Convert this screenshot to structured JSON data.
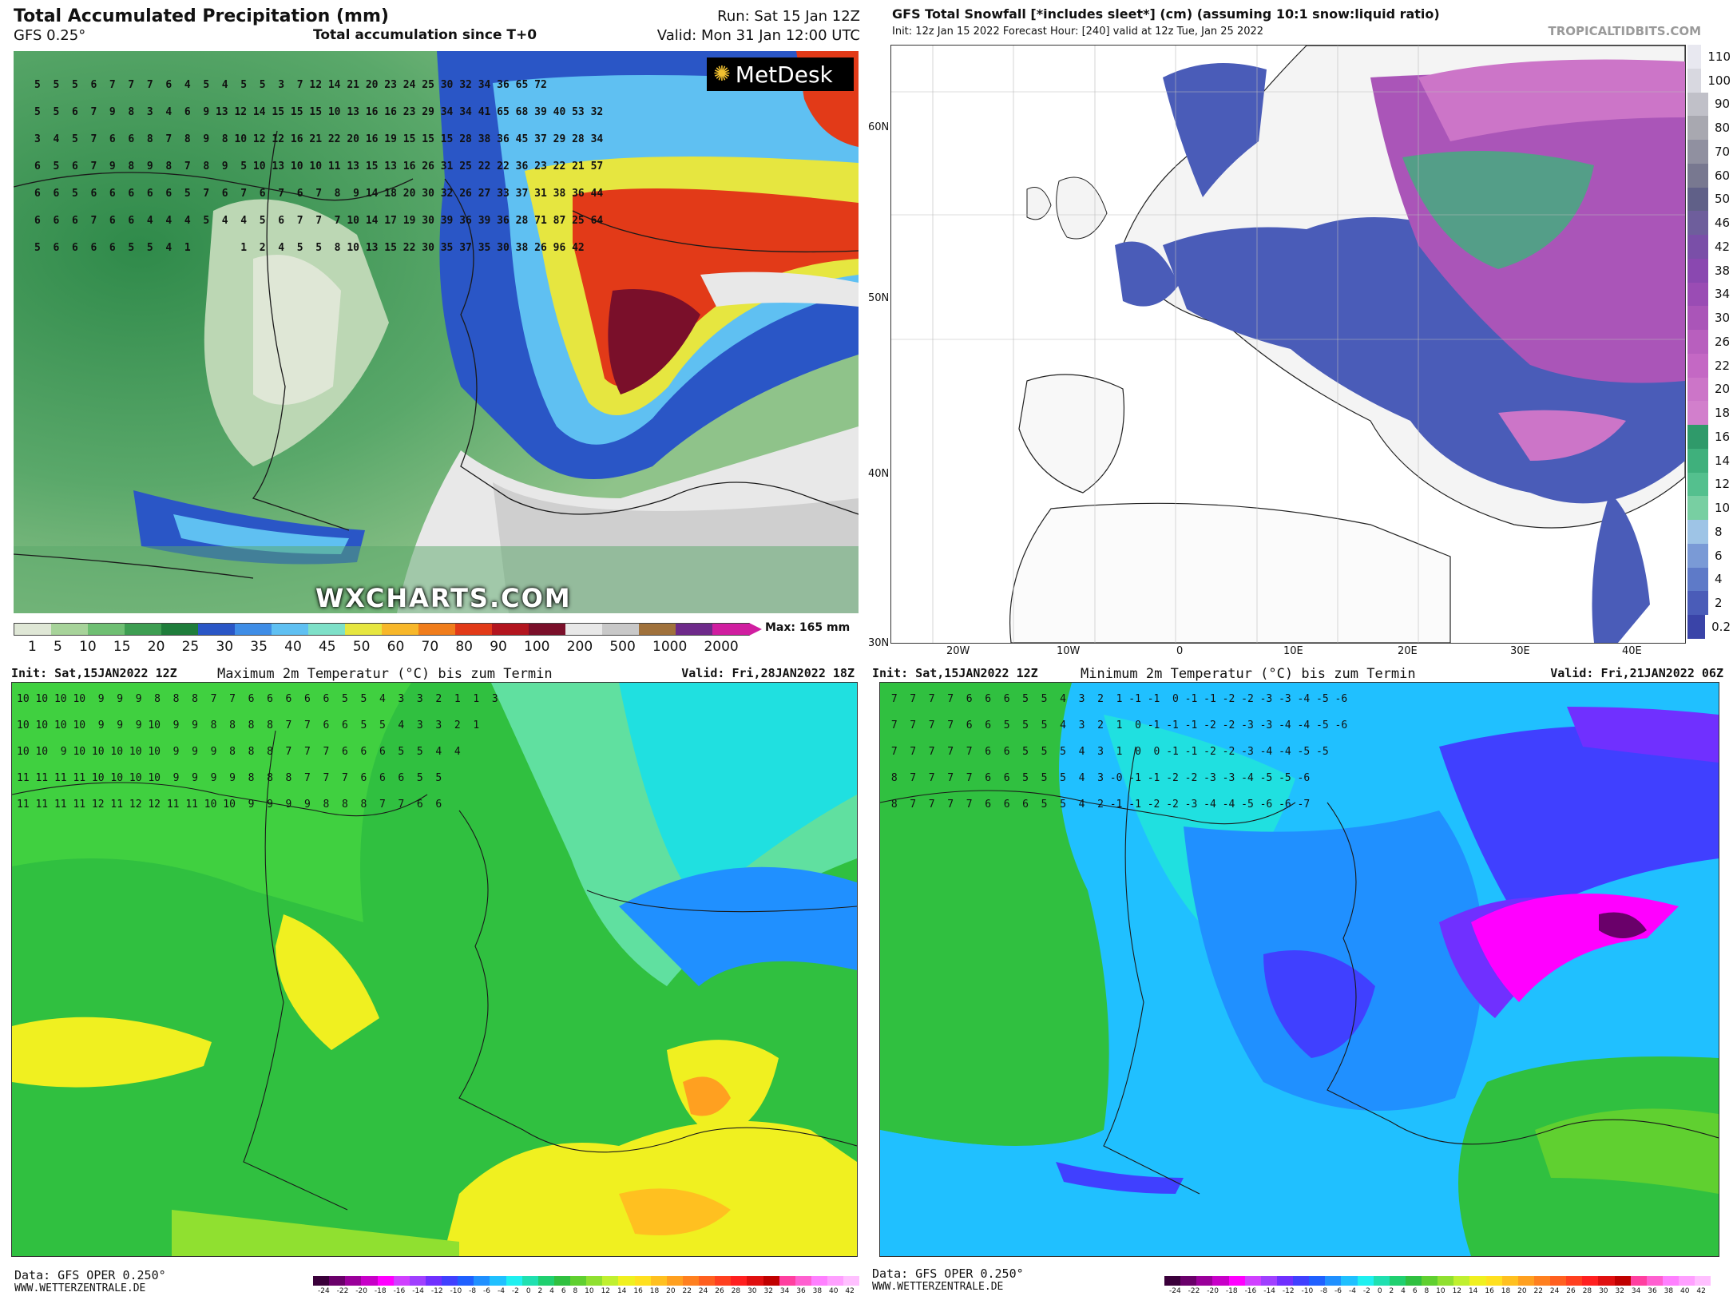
{
  "precip": {
    "title": "Total Accumulated Precipitation (mm)",
    "model": "GFS 0.25°",
    "subtitle": "Total accumulation since T+0",
    "run": "Run: Sat 15 Jan 12Z",
    "valid": "Valid: Mon 31 Jan 12:00 UTC",
    "logo": "MetDesk",
    "watermark": "WXCHARTS.COM",
    "max": "Max: 165 mm",
    "scale_labels": [
      "1",
      "5",
      "10",
      "15",
      "20",
      "25",
      "30",
      "35",
      "40",
      "45",
      "50",
      "60",
      "70",
      "80",
      "90",
      "100",
      "200",
      "500",
      "1000",
      "2000"
    ],
    "scale_colors": [
      "#dfe7d6",
      "#a7d39a",
      "#6fbf73",
      "#3e9e52",
      "#1f7d3b",
      "#2a56c6",
      "#3f8de6",
      "#5fc0f2",
      "#7ee0c8",
      "#e6e640",
      "#f7b72a",
      "#f07d1c",
      "#e23a18",
      "#b3151f",
      "#7a0f2a",
      "#e8e8e8",
      "#c8c8c8",
      "#a0723c",
      "#6e2a8a",
      "#d01ea0"
    ],
    "values_text": "5  5  5  6  7  7  7  6  4  5  4  5  5  3  7 12 14 21 20 23 24 25 30 32 34 36 65 72\n5  5  6  7  9  8  3  4  6  9 13 12 14 15 15 15 10 13 16 16 23 29 34 34 41 65 68 39 40 53 32\n3  4  5  7  6  6  8  7  8  9  8 10 12 12 16 21 22 20 16 19 15 15 15 28 38 36 45 37 29 28 34\n6  5  6  7  9  8  9  8  7  8  9  5 10 13 10 10 11 13 15 13 16 26 31 25 22 22 36 23 22 21 57\n6  6  5  6  6  6  6  6  5  7  6  7  6  7  6  7  8  9 14 18 20 30 32 26 27 33 37 31 38 36 44\n6  6  6  7  6  6  4  4  4  5  4  4  5  6  7  7  7 10 14 17 19 30 39 36 39 36 28 71 87 25 64\n5  6  6  6  6  5  5  4  1        1  2  4  5  5  8 10 13 15 22 30 35 37 35 30 38 26 96 42"
  },
  "snow": {
    "title": "GFS Total Snowfall [*includes sleet*] (cm) (assuming 10:1 snow:liquid ratio)",
    "init": "Init: 12z Jan 15 2022   Forecast Hour: [240]   valid at 12z Tue, Jan 25 2022",
    "brand": "TROPICALTIDBITS.COM",
    "lat_labels": [
      "60N",
      "50N",
      "40N",
      "30N"
    ],
    "lon_labels": [
      "20W",
      "10W",
      "0",
      "10E",
      "20E",
      "30E",
      "40E"
    ],
    "scale_labels": [
      "110",
      "100",
      "90",
      "80",
      "70",
      "60",
      "50",
      "46",
      "42",
      "38",
      "34",
      "30",
      "26",
      "22",
      "20",
      "18",
      "16",
      "14",
      "12",
      "10",
      "8",
      "6",
      "4",
      "2",
      "0.2"
    ],
    "scale_colors": [
      "#e8e8f0",
      "#d8d8e0",
      "#c0c0c8",
      "#a8a8b0",
      "#9090a0",
      "#787890",
      "#606088",
      "#6e5e9c",
      "#7a4fa8",
      "#8a48b0",
      "#9a4cb4",
      "#aa55b8",
      "#b85fbe",
      "#c468c4",
      "#cc75c8",
      "#d27fcc",
      "#2f9a6a",
      "#3fb07c",
      "#54c08e",
      "#78cfa2",
      "#9ec4e6",
      "#7a9ad6",
      "#5e7ac8",
      "#4a5cb8",
      "#3a44a8"
    ]
  },
  "tmax": {
    "init": "Init: Sat,15JAN2022 12Z",
    "title": "Maximum 2m Temperatur (°C) bis zum Termin",
    "valid": "Valid: Fri,28JAN2022 18Z",
    "footer1": "Data: GFS OPER 0.250°",
    "footer2": "WWW.WETTERZENTRALE.DE",
    "values_text": "10 10 10 10  9  9  9  8  8  8  7  7  6  6  6  6  6  5  5  4  3  3  2  1  1  3\n10 10 10 10  9  9  9 10  9  9  8  8  8  8  7  7  6  6  5  5  4  3  3  2  1\n10 10  9 10 10 10 10 10  9  9  9  8  8  8  7  7  7  6  6  6  5  5  4  4\n11 11 11 11 10 10 10 10  9  9  9  9  8  8  8  7  7  7  6  6  6  5  5\n11 11 11 11 12 11 12 12 11 11 10 10  9  9  9  9  8  8  8  7  7  6  6"
  },
  "tmin": {
    "init": "Init: Sat,15JAN2022 12Z",
    "title": "Minimum 2m Temperatur (°C) bis zum Termin",
    "valid": "Valid: Fri,21JAN2022 06Z",
    "footer1": "Data: GFS OPER 0.250°",
    "footer2": "WWW.WETTERZENTRALE.DE",
    "values_text": " 7  7  7  7  6  6  6  5  5  4  3  2  1 -1 -1  0 -1 -1 -2 -2 -3 -3 -4 -5 -6\n 7  7  7  7  6  6  5  5  5  4  3  2  1  0 -1 -1 -1 -2 -2 -3 -3 -4 -4 -5 -6\n 7  7  7  7  7  6  6  5  5  5  4  3  1  0  0 -1 -1 -2 -2 -3 -4 -4 -5 -5\n 8  7  7  7  7  6  6  5  5  5  4  3 -0 -1 -1 -2 -2 -3 -3 -4 -5 -5 -6\n 8  7  7  7  7  6  6  6  5  5  4  2 -1 -1 -2 -2 -3 -4 -4 -5 -6 -6 -7"
  },
  "temp_scale_labels": [
    "-24",
    "-22",
    "-20",
    "-18",
    "-16",
    "-14",
    "-12",
    "-10",
    "-8",
    "-6",
    "-4",
    "-2",
    "0",
    "2",
    "4",
    "6",
    "8",
    "10",
    "12",
    "14",
    "16",
    "18",
    "20",
    "22",
    "24",
    "26",
    "28",
    "30",
    "32",
    "34",
    "36",
    "38",
    "40",
    "42"
  ],
  "temp_scale_colors": [
    "#3a003a",
    "#6a006a",
    "#9a009a",
    "#c800c8",
    "#ff00ff",
    "#d040ff",
    "#a040ff",
    "#7030ff",
    "#4040ff",
    "#2060ff",
    "#2090ff",
    "#20c0ff",
    "#20f0f0",
    "#20e0b0",
    "#20d070",
    "#30c040",
    "#60d030",
    "#90e030",
    "#c0f030",
    "#f0f020",
    "#ffe020",
    "#ffc020",
    "#ffa020",
    "#ff8020",
    "#ff6020",
    "#ff4020",
    "#ff2020",
    "#e01010",
    "#c00000",
    "#ff40a0",
    "#ff60d0",
    "#ff80ff",
    "#ffa0ff",
    "#ffc0ff"
  ]
}
